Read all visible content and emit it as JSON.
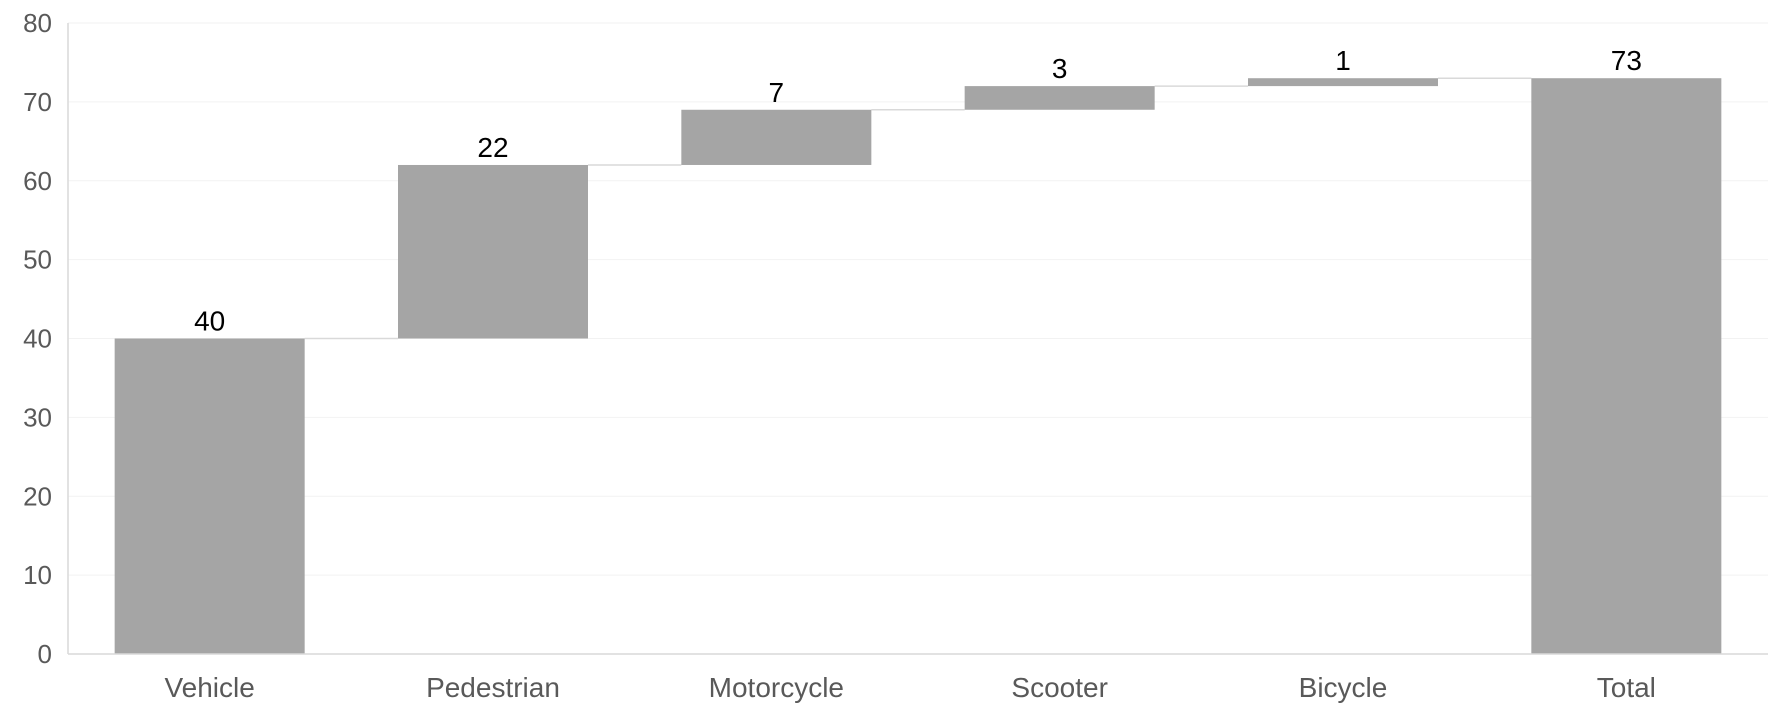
{
  "chart_data": {
    "type": "bar",
    "subtype": "waterfall",
    "title": "",
    "xlabel": "",
    "ylabel": "",
    "ylim": [
      0,
      80
    ],
    "yticks": [
      0,
      10,
      20,
      30,
      40,
      50,
      60,
      70,
      80
    ],
    "grid": "horizontal, faint",
    "legend": "none",
    "categories": [
      "Vehicle",
      "Pedestrian",
      "Motorcycle",
      "Scooter",
      "Bicycle",
      "Total"
    ],
    "values": [
      40,
      22,
      7,
      3,
      1,
      73
    ],
    "data_labels": [
      "40",
      "22",
      "7",
      "3",
      "1",
      "73"
    ],
    "bar_kinds": [
      "increase",
      "increase",
      "increase",
      "increase",
      "increase",
      "total"
    ],
    "colors": {
      "bar": "#a5a5a5",
      "axis": "#d9d9d9",
      "tick_text": "#595959",
      "label_text": "#000000"
    }
  }
}
